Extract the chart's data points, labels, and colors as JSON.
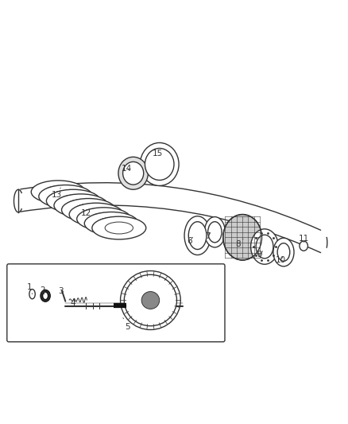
{
  "background_color": "#ffffff",
  "line_color": "#333333",
  "label_color": "#333333",
  "figsize": [
    4.38,
    5.33
  ],
  "dpi": 100,
  "leader_lines": {
    "1": {
      "part": [
        0.09,
        0.263
      ],
      "label": [
        0.082,
        0.283
      ]
    },
    "2": {
      "part": [
        0.128,
        0.257
      ],
      "label": [
        0.12,
        0.274
      ]
    },
    "3": {
      "part": [
        0.18,
        0.262
      ],
      "label": [
        0.172,
        0.272
      ]
    },
    "4": {
      "part": [
        0.218,
        0.248
      ],
      "label": [
        0.208,
        0.236
      ]
    },
    "5": {
      "part": [
        0.35,
        0.2
      ],
      "label": [
        0.365,
        0.168
      ]
    },
    "6": {
      "part": [
        0.558,
        0.432
      ],
      "label": [
        0.545,
        0.415
      ]
    },
    "7": {
      "part": [
        0.608,
        0.445
      ],
      "label": [
        0.598,
        0.43
      ]
    },
    "8": {
      "part": [
        0.7,
        0.422
      ],
      "label": [
        0.685,
        0.408
      ]
    },
    "9": {
      "part": [
        0.76,
        0.392
      ],
      "label": [
        0.748,
        0.376
      ]
    },
    "10": {
      "part": [
        0.818,
        0.376
      ],
      "label": [
        0.808,
        0.36
      ]
    },
    "11": {
      "part": [
        0.876,
        0.406
      ],
      "label": [
        0.876,
        0.422
      ]
    },
    "12": {
      "part": [
        0.235,
        0.522
      ],
      "label": [
        0.245,
        0.496
      ]
    },
    "13": {
      "part": [
        0.172,
        0.57
      ],
      "label": [
        0.162,
        0.55
      ]
    },
    "14": {
      "part": [
        0.376,
        0.618
      ],
      "label": [
        0.362,
        0.626
      ]
    },
    "15": {
      "part": [
        0.462,
        0.662
      ],
      "label": [
        0.452,
        0.67
      ]
    }
  }
}
